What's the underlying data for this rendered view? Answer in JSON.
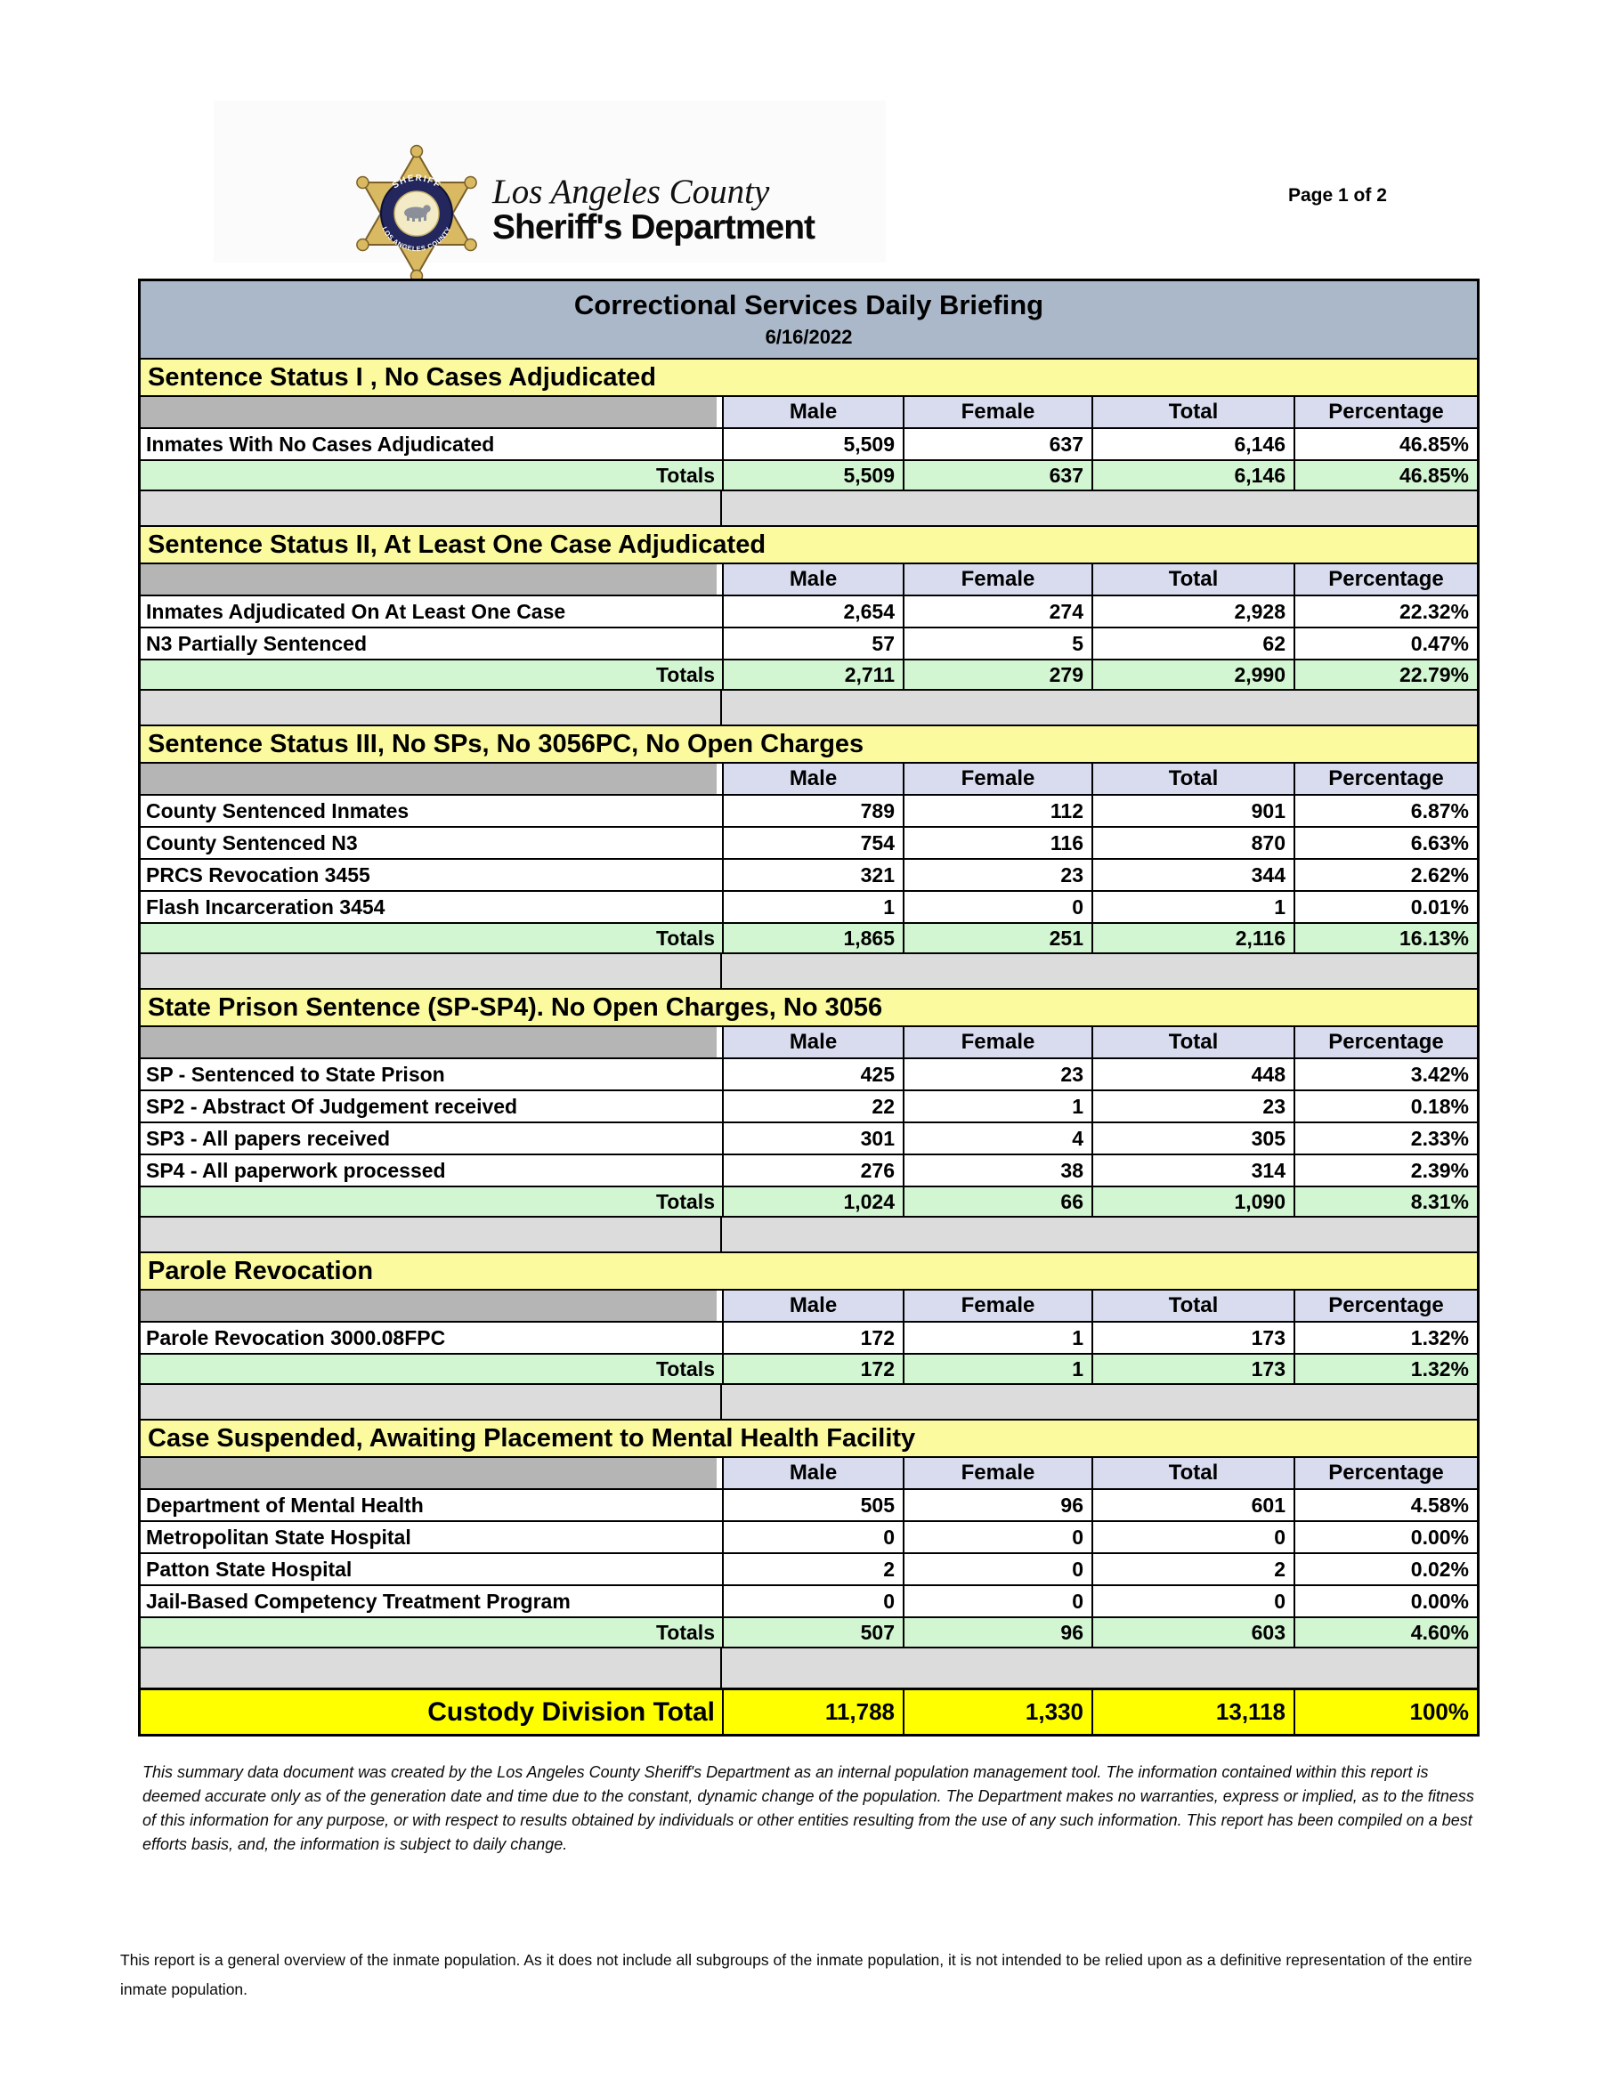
{
  "header": {
    "page_label": "Page 1 of 2",
    "logo": {
      "county_line": "Los Angeles County",
      "dept_line": "Sheriff's Department",
      "badge_top_text": "SHERIFF",
      "badge_ring_text": "LOS ANGELES COUNTY",
      "registered_mark": "®"
    }
  },
  "report": {
    "title": "Correctional Services Daily Briefing",
    "date": "6/16/2022"
  },
  "columns": [
    "Male",
    "Female",
    "Total",
    "Percentage"
  ],
  "totals_label": "Totals",
  "sections": [
    {
      "header": "Sentence Status I , No Cases Adjudicated",
      "rows": [
        {
          "label": "Inmates With No Cases Adjudicated",
          "male": "5,509",
          "female": "637",
          "total": "6,146",
          "percentage": "46.85%"
        }
      ],
      "totals": {
        "male": "5,509",
        "female": "637",
        "total": "6,146",
        "percentage": "46.85%"
      }
    },
    {
      "header": "Sentence Status II, At Least One Case Adjudicated",
      "rows": [
        {
          "label": "Inmates Adjudicated On At Least One Case",
          "male": "2,654",
          "female": "274",
          "total": "2,928",
          "percentage": "22.32%"
        },
        {
          "label": "N3 Partially Sentenced",
          "male": "57",
          "female": "5",
          "total": "62",
          "percentage": "0.47%"
        }
      ],
      "totals": {
        "male": "2,711",
        "female": "279",
        "total": "2,990",
        "percentage": "22.79%"
      }
    },
    {
      "header": "Sentence Status III, No SPs, No 3056PC, No Open Charges",
      "rows": [
        {
          "label": "County Sentenced Inmates",
          "male": "789",
          "female": "112",
          "total": "901",
          "percentage": "6.87%"
        },
        {
          "label": "County Sentenced N3",
          "male": "754",
          "female": "116",
          "total": "870",
          "percentage": "6.63%"
        },
        {
          "label": "PRCS Revocation 3455",
          "male": "321",
          "female": "23",
          "total": "344",
          "percentage": "2.62%"
        },
        {
          "label": "Flash Incarceration 3454",
          "male": "1",
          "female": "0",
          "total": "1",
          "percentage": "0.01%"
        }
      ],
      "totals": {
        "male": "1,865",
        "female": "251",
        "total": "2,116",
        "percentage": "16.13%"
      }
    },
    {
      "header": "State Prison Sentence (SP-SP4). No Open Charges, No 3056",
      "rows": [
        {
          "label": "SP - Sentenced to State Prison",
          "male": "425",
          "female": "23",
          "total": "448",
          "percentage": "3.42%"
        },
        {
          "label": "SP2 - Abstract Of Judgement received",
          "male": "22",
          "female": "1",
          "total": "23",
          "percentage": "0.18%"
        },
        {
          "label": "SP3 - All papers received",
          "male": "301",
          "female": "4",
          "total": "305",
          "percentage": "2.33%"
        },
        {
          "label": "SP4 - All paperwork processed",
          "male": "276",
          "female": "38",
          "total": "314",
          "percentage": "2.39%"
        }
      ],
      "totals": {
        "male": "1,024",
        "female": "66",
        "total": "1,090",
        "percentage": "8.31%"
      }
    },
    {
      "header": "Parole Revocation",
      "rows": [
        {
          "label": "Parole Revocation 3000.08FPC",
          "male": "172",
          "female": "1",
          "total": "173",
          "percentage": "1.32%"
        }
      ],
      "totals": {
        "male": "172",
        "female": "1",
        "total": "173",
        "percentage": "1.32%"
      }
    },
    {
      "header": "Case Suspended, Awaiting Placement to Mental Health Facility",
      "rows": [
        {
          "label": "Department of Mental Health",
          "male": "505",
          "female": "96",
          "total": "601",
          "percentage": "4.58%"
        },
        {
          "label": "Metropolitan State Hospital",
          "male": "0",
          "female": "0",
          "total": "0",
          "percentage": "0.00%"
        },
        {
          "label": "Patton State Hospital",
          "male": "2",
          "female": "0",
          "total": "2",
          "percentage": "0.02%"
        },
        {
          "label": "Jail-Based Competency Treatment Program",
          "male": "0",
          "female": "0",
          "total": "0",
          "percentage": "0.00%"
        }
      ],
      "totals": {
        "male": "507",
        "female": "96",
        "total": "603",
        "percentage": "4.60%"
      }
    }
  ],
  "grand_total": {
    "label": "Custody Division Total",
    "male": "11,788",
    "female": "1,330",
    "total": "13,118",
    "percentage": "100%"
  },
  "footnotes": {
    "disclaimer": "This summary data document was created by the Los Angeles County Sheriff's Department as an internal population management tool.  The information contained within this report is deemed accurate only as of the generation date and time due to the constant, dynamic change of the population.  The Department makes no warranties, express or implied, as to the fitness of this information for any purpose, or with respect to results obtained by individuals or other entities resulting from the use of any such information.  This report has been compiled on a best efforts basis, and, the information is subject to daily change.",
    "note": "This report is a general overview of the inmate population.  As it does not include all subgroups of the inmate population, it is not intended to be relied upon as a definitive representation of the entire inmate population."
  },
  "colors": {
    "title_bar": "#aab8c9",
    "section_header": "#fbfa9e",
    "column_header": "#d8dcee",
    "blank_header": "#b5b5b5",
    "totals_row": "#d2f5d2",
    "gap_row": "#dcdcdc",
    "grand_total_row": "#ffff00",
    "border": "#000000"
  }
}
